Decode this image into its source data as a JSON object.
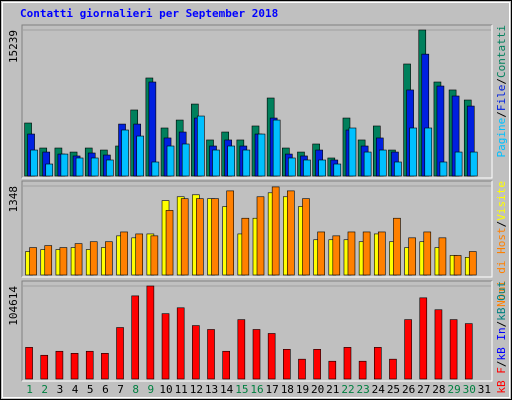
{
  "chart_data": [
    {
      "type": "bar",
      "title": "Contatti giornalieri per September 2018",
      "series": [
        {
          "name": "Contatti",
          "color": "#00805c",
          "values": [
            5530,
            2920,
            2920,
            2500,
            2920,
            2710,
            3130,
            6890,
            10230,
            5010,
            5840,
            7510,
            3760,
            4590,
            3760,
            5220,
            8140,
            2920,
            2500,
            3340,
            1880,
            6050,
            3760,
            5220,
            2710,
            11690,
            15239,
            9810,
            8980,
            7930,
            0
          ]
        },
        {
          "name": "File",
          "color": "#0020e0",
          "values": [
            4380,
            2500,
            2290,
            2090,
            2400,
            2190,
            5420,
            5420,
            9810,
            3970,
            4590,
            6050,
            3130,
            3760,
            3130,
            4380,
            6050,
            2290,
            2090,
            2710,
            1670,
            4800,
            3130,
            3970,
            2500,
            8980,
            12720,
            9390,
            8350,
            7300,
            0
          ]
        },
        {
          "name": "Pagine",
          "color": "#00c0ff",
          "values": [
            2710,
            1250,
            2290,
            1880,
            1880,
            1670,
            4800,
            4170,
            1460,
            3130,
            3340,
            6260,
            2710,
            3130,
            2710,
            4380,
            5840,
            1880,
            1670,
            1670,
            1250,
            5010,
            2500,
            2710,
            1460,
            5010,
            5010,
            1460,
            2500,
            2500,
            0
          ]
        }
      ],
      "ylim": [
        0,
        15239
      ],
      "yticks": [
        15239
      ],
      "separator": "/"
    },
    {
      "type": "bar",
      "series": [
        {
          "name": "Visite",
          "color": "#ffff00",
          "values": [
            355,
            385,
            385,
            415,
            385,
            415,
            593,
            563,
            622,
            1126,
            1185,
            1215,
            1156,
            1037,
            622,
            860,
            1245,
            1185,
            1037,
            534,
            534,
            534,
            504,
            622,
            504,
            415,
            504,
            415,
            296,
            267,
            0
          ]
        },
        {
          "name": "Nomi di Host",
          "color": "#ff8000",
          "values": [
            415,
            445,
            415,
            475,
            504,
            504,
            652,
            622,
            593,
            978,
            1156,
            1156,
            1156,
            1274,
            860,
            1185,
            1334,
            1274,
            1156,
            652,
            593,
            652,
            652,
            652,
            860,
            563,
            652,
            563,
            296,
            355,
            0
          ]
        }
      ],
      "ylim": [
        0,
        1348
      ],
      "yticks": [
        1348
      ],
      "separator": "/"
    },
    {
      "type": "bar",
      "categories": [
        "1",
        "2",
        "3",
        "4",
        "5",
        "6",
        "7",
        "8",
        "9",
        "10",
        "11",
        "12",
        "13",
        "14",
        "15",
        "16",
        "17",
        "18",
        "19",
        "20",
        "21",
        "22",
        "23",
        "24",
        "25",
        "26",
        "27",
        "28",
        "29",
        "30",
        "31"
      ],
      "category_colors": [
        "#008040",
        "#008040",
        "#000000",
        "#000000",
        "#000000",
        "#000000",
        "#000000",
        "#008040",
        "#008040",
        "#000000",
        "#000000",
        "#000000",
        "#000000",
        "#000000",
        "#008040",
        "#008040",
        "#000000",
        "#000000",
        "#000000",
        "#000000",
        "#000000",
        "#008040",
        "#008040",
        "#000000",
        "#000000",
        "#000000",
        "#000000",
        "#000000",
        "#008040",
        "#008040",
        "#000000"
      ],
      "series": [
        {
          "name": "kB F",
          "color": "#ff0000",
          "values": [
            35600,
            26700,
            31200,
            28900,
            31200,
            28900,
            57900,
            93500,
            104614,
            73500,
            80100,
            60100,
            55700,
            31200,
            66800,
            55700,
            51200,
            33400,
            22300,
            33400,
            20000,
            35600,
            20000,
            35600,
            22300,
            66800,
            91300,
            77900,
            66800,
            62300,
            0
          ]
        }
      ],
      "legend_only": [
        {
          "name": "kB In",
          "color": "#0000ff"
        },
        {
          "name": "kB Out",
          "color": "#008080"
        }
      ],
      "ylim": [
        0,
        104614
      ],
      "yticks": [
        104614
      ],
      "separator": "/"
    }
  ]
}
